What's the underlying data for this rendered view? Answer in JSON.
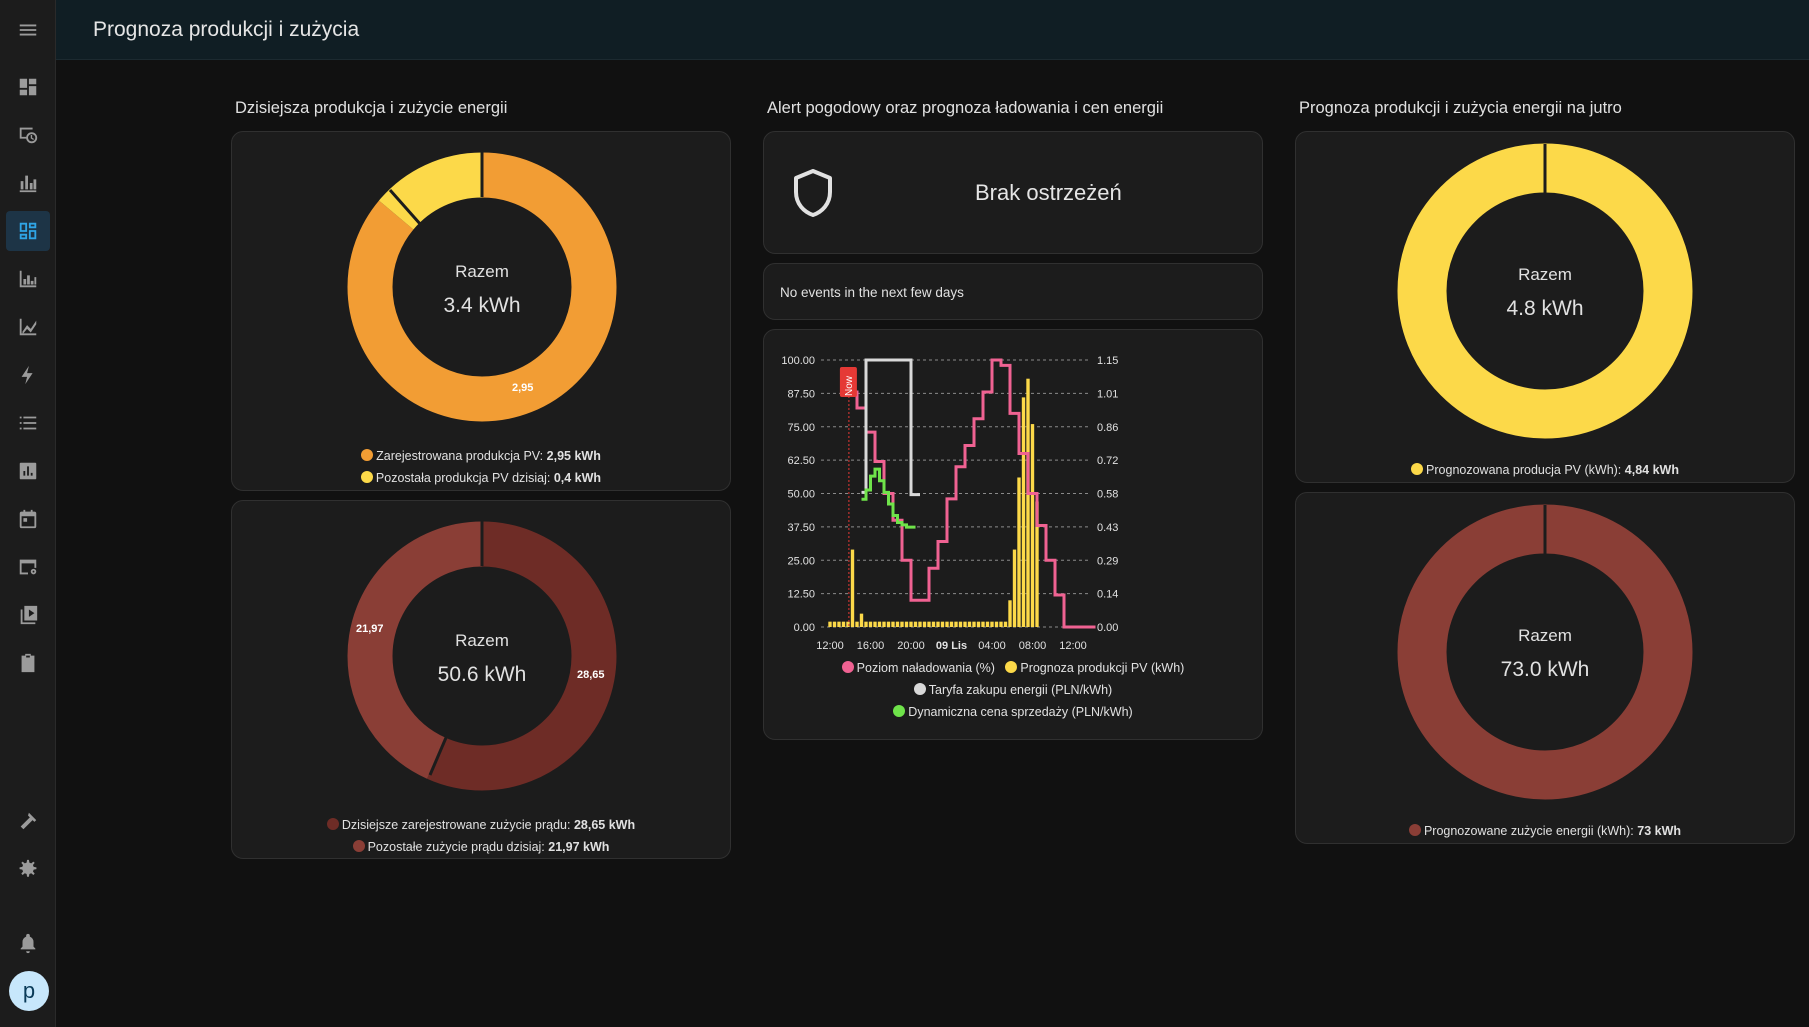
{
  "header": {
    "title": "Prognoza produkcji i zużycia"
  },
  "sidebar": {
    "items": [
      {
        "name": "menu-icon"
      },
      {
        "name": "dashboard-icon"
      },
      {
        "name": "history-icon"
      },
      {
        "name": "energy-icon"
      },
      {
        "name": "panels-icon"
      },
      {
        "name": "statistics-icon"
      },
      {
        "name": "graph-icon"
      },
      {
        "name": "lightning-icon"
      },
      {
        "name": "list-icon"
      },
      {
        "name": "chart-box-icon"
      },
      {
        "name": "calendar-icon"
      },
      {
        "name": "monitor-cog-icon"
      },
      {
        "name": "media-icon"
      },
      {
        "name": "clipboard-icon"
      },
      {
        "name": "hammer-icon"
      },
      {
        "name": "cog-icon"
      },
      {
        "name": "bell-icon"
      }
    ],
    "active": "panels-icon",
    "avatar": "p"
  },
  "columns": {
    "left": {
      "title": "Dzisiejsza produkcja i zużycie energii"
    },
    "middle": {
      "title": "Alert pogodowy oraz prognoza ładowania i cen energii"
    },
    "right": {
      "title": "Prognoza produkcji i zużycia energii na jutro"
    }
  },
  "pv_today": {
    "center_label": "Razem",
    "total": "3.4 kWh",
    "segment_label": "2,95",
    "legend": [
      {
        "label": "Zarejestrowana produkcja PV:",
        "value": "2,95 kWh",
        "color": "#f29d34"
      },
      {
        "label": "Pozostała produkcja PV dzisiaj:",
        "value": "0,4 kWh",
        "color": "#fcd949"
      }
    ]
  },
  "usage_today": {
    "center_label": "Razem",
    "total": "50.6 kWh",
    "segment_labels": [
      "28,65",
      "21,97"
    ],
    "legend": [
      {
        "label": "Dzisiejsze zarejestrowane zużycie prądu:",
        "value": "28,65 kWh",
        "color": "#6e2c26"
      },
      {
        "label": "Pozostałe zużycie prądu dzisiaj:",
        "value": "21,97 kWh",
        "color": "#8a3e36"
      }
    ]
  },
  "alert": {
    "text": "Brak ostrzeżeń"
  },
  "events": {
    "text": "No events in the next few days"
  },
  "pv_tomorrow": {
    "center_label": "Razem",
    "total": "4.8 kWh",
    "legend": [
      {
        "label": "Prognozowana producja PV (kWh):",
        "value": "4,84 kWh",
        "color": "#fcd949"
      }
    ]
  },
  "usage_tomorrow": {
    "center_label": "Razem",
    "total": "73.0 kWh",
    "legend": [
      {
        "label": "Prognozowane zużycie energii (kWh):",
        "value": "73 kWh",
        "color": "#8a3e36"
      }
    ]
  },
  "chart_data": {
    "type": "line",
    "now_marker": "Now",
    "x_tick_labels": [
      "12:00",
      "16:00",
      "20:00",
      "09 Lis",
      "04:00",
      "08:00",
      "12:00"
    ],
    "left_axis": {
      "min": 0,
      "max": 100,
      "tick_labels": [
        "0.00",
        "12.50",
        "25.00",
        "37.50",
        "50.00",
        "62.50",
        "75.00",
        "87.50",
        "100.00"
      ]
    },
    "right_axis": {
      "min": 0,
      "max": 1.15,
      "tick_labels": [
        "0.00",
        "0.14",
        "0.29",
        "0.43",
        "0.58",
        "0.72",
        "0.86",
        "1.01",
        "1.15"
      ]
    },
    "grid": true,
    "legend_position": "bottom",
    "series": [
      {
        "name": "Poziom naładowania (%)",
        "kind": "step-line",
        "axis": "left",
        "color": "#f06292",
        "x": [
          2.5,
          3,
          4,
          5,
          6,
          7,
          8,
          9,
          10,
          11,
          12,
          13,
          14,
          15,
          16,
          17,
          18,
          19,
          20,
          21,
          22,
          23,
          24,
          25,
          26,
          27,
          28,
          29
        ],
        "y": [
          88,
          82,
          73,
          62,
          50,
          40,
          25,
          10,
          10,
          22,
          32,
          48,
          60,
          68,
          78,
          88,
          100,
          98,
          80,
          65,
          50,
          38,
          25,
          12,
          0,
          0,
          0,
          0
        ]
      },
      {
        "name": "Prognoza produkcji PV (kWh)",
        "kind": "bar",
        "axis": "left",
        "color": "#fcd949",
        "x": [
          0,
          0.5,
          1,
          1.5,
          2,
          2.5,
          3,
          3.5,
          4,
          4.5,
          5,
          5.5,
          6,
          6.5,
          7,
          7.5,
          8,
          8.5,
          9,
          9.5,
          10,
          10.5,
          11,
          11.5,
          12,
          12.5,
          13,
          13.5,
          14,
          14.5,
          15,
          15.5,
          16,
          16.5,
          17,
          17.5,
          18,
          18.5,
          19,
          19.5,
          20,
          20.5,
          21,
          21.5,
          22,
          22.5,
          23,
          23.5,
          24
        ],
        "y": [
          2,
          2,
          2,
          2,
          2,
          29,
          2,
          5,
          2,
          2,
          2,
          2,
          2,
          2,
          2,
          2,
          2,
          2,
          2,
          2,
          2,
          2,
          2,
          2,
          2,
          2,
          2,
          2,
          2,
          2,
          2,
          2,
          2,
          2,
          2,
          2,
          2,
          2,
          2,
          2,
          10,
          29,
          56,
          86,
          93,
          76,
          47,
          0,
          0
        ]
      },
      {
        "name": "Taryfa zakupu energii (PLN/kWh)",
        "kind": "step-line",
        "axis": "right",
        "color": "#d9d9d9",
        "x": [
          3.5,
          4,
          9,
          9.5
        ],
        "y": [
          0.58,
          1.15,
          0.57,
          0.57
        ]
      },
      {
        "name": "Dynamiczna cena sprzedaży (PLN/kWh)",
        "kind": "step-line",
        "axis": "right",
        "color": "#6fe34a",
        "x": [
          3.5,
          4,
          4.5,
          5,
          5.5,
          6,
          6.5,
          7,
          7.5,
          8,
          8.5,
          9
        ],
        "y": [
          0.55,
          0.59,
          0.65,
          0.68,
          0.63,
          0.58,
          0.53,
          0.48,
          0.45,
          0.44,
          0.43,
          0.43
        ]
      }
    ]
  }
}
